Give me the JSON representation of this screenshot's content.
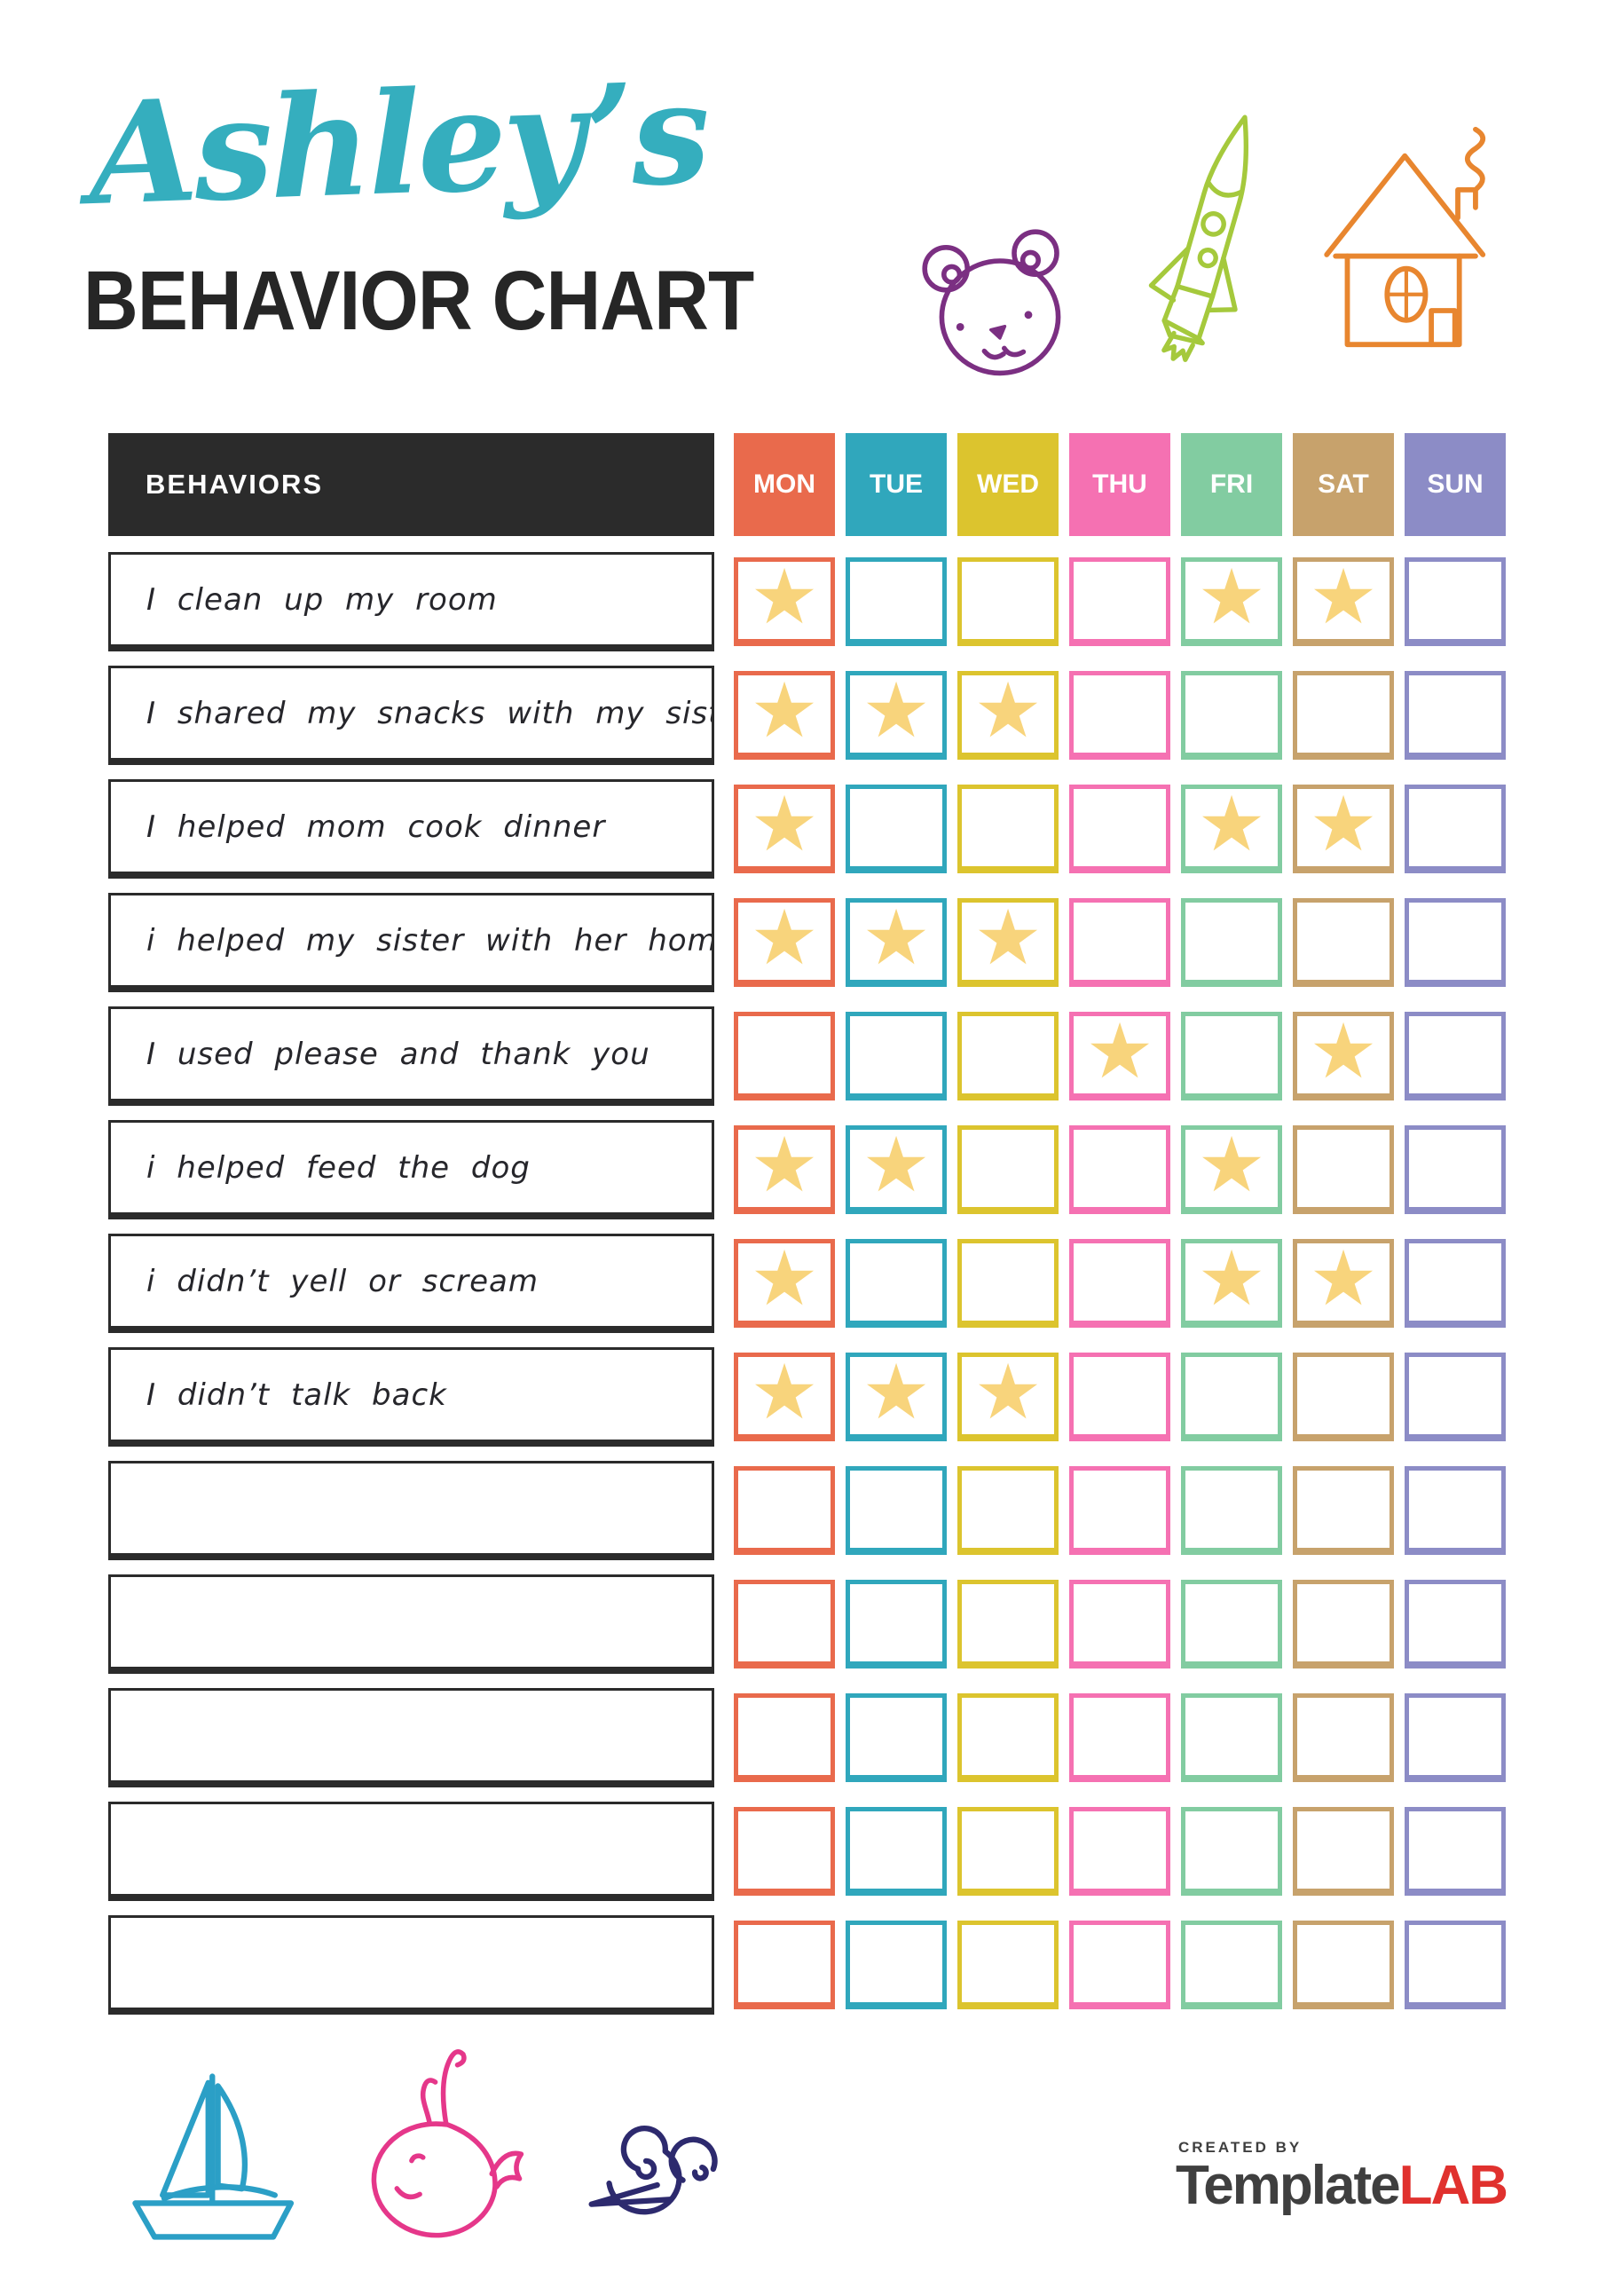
{
  "header": {
    "name": "Ashley’s",
    "name_color": "#35AEBE",
    "title": "BEHAVIOR CHART",
    "title_color": "#262626"
  },
  "decorations": {
    "top": [
      "bear-doodle",
      "rocket-doodle",
      "house-doodle"
    ],
    "bottom": [
      "sailboat-doodle",
      "whale-doodle",
      "snail-doodle"
    ],
    "colors": {
      "bear": "#7B2F82",
      "rocket": "#A5C93C",
      "house": "#E8862F",
      "sailboat": "#2B9FC6",
      "whale": "#E5378A",
      "snail": "#2D2A6E"
    }
  },
  "table": {
    "behaviors_header": "BEHAVIORS",
    "header_bg": "#2B2B2B",
    "star_glyph": "★",
    "star_color": "#F8D47C",
    "days": [
      {
        "label": "MON",
        "color": "#E96A4C"
      },
      {
        "label": "TUE",
        "color": "#30A7BC"
      },
      {
        "label": "WED",
        "color": "#DCC42E"
      },
      {
        "label": "THU",
        "color": "#F571B2"
      },
      {
        "label": "FRI",
        "color": "#82CCA1"
      },
      {
        "label": "SAT",
        "color": "#C7A26C"
      },
      {
        "label": "SUN",
        "color": "#8C8CC6"
      }
    ],
    "rows": [
      {
        "behavior": "I clean up my room",
        "stars": [
          1,
          0,
          0,
          0,
          1,
          1,
          0
        ]
      },
      {
        "behavior": "I shared my snacks with my sister",
        "stars": [
          1,
          1,
          1,
          0,
          0,
          0,
          0
        ]
      },
      {
        "behavior": "I helped mom cook dinner",
        "stars": [
          1,
          0,
          0,
          0,
          1,
          1,
          0
        ]
      },
      {
        "behavior": "i helped my sister with her homework",
        "stars": [
          1,
          1,
          1,
          0,
          0,
          0,
          0
        ]
      },
      {
        "behavior": "I used please and thank you",
        "stars": [
          0,
          0,
          0,
          1,
          0,
          1,
          0
        ]
      },
      {
        "behavior": "i helped feed the dog",
        "stars": [
          1,
          1,
          0,
          0,
          1,
          0,
          0
        ]
      },
      {
        "behavior": "i didn’t yell or scream",
        "stars": [
          1,
          0,
          0,
          0,
          1,
          1,
          0
        ]
      },
      {
        "behavior": "I didn’t talk back",
        "stars": [
          1,
          1,
          1,
          0,
          0,
          0,
          0
        ]
      },
      {
        "behavior": "",
        "stars": [
          0,
          0,
          0,
          0,
          0,
          0,
          0
        ]
      },
      {
        "behavior": "",
        "stars": [
          0,
          0,
          0,
          0,
          0,
          0,
          0
        ]
      },
      {
        "behavior": "",
        "stars": [
          0,
          0,
          0,
          0,
          0,
          0,
          0
        ]
      },
      {
        "behavior": "",
        "stars": [
          0,
          0,
          0,
          0,
          0,
          0,
          0
        ]
      },
      {
        "behavior": "",
        "stars": [
          0,
          0,
          0,
          0,
          0,
          0,
          0
        ]
      }
    ]
  },
  "footer": {
    "created_by": "CREATED BY",
    "brand_template": "Template",
    "brand_lab": "LAB",
    "brand_gray": "#3F3F3F",
    "brand_red": "#E0312E"
  }
}
